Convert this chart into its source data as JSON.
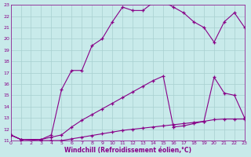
{
  "xlabel": "Windchill (Refroidissement éolien,°C)",
  "xlim": [
    0,
    23
  ],
  "ylim": [
    11,
    23
  ],
  "xticks": [
    0,
    1,
    2,
    3,
    4,
    5,
    6,
    7,
    8,
    9,
    10,
    11,
    12,
    13,
    14,
    15,
    16,
    17,
    18,
    19,
    20,
    21,
    22,
    23
  ],
  "yticks": [
    11,
    12,
    13,
    14,
    15,
    16,
    17,
    18,
    19,
    20,
    21,
    22,
    23
  ],
  "bg_color": "#c8eaea",
  "grid_color": "#a8d0d0",
  "line_color": "#880088",
  "curve1_x": [
    0,
    1,
    3,
    4,
    5,
    6,
    7,
    8,
    9,
    10,
    11,
    12,
    13,
    14,
    15,
    16,
    17,
    18,
    19,
    20,
    21,
    22,
    23
  ],
  "curve1_y": [
    11.5,
    11.1,
    11.1,
    11.5,
    15.5,
    17.2,
    17.2,
    19.4,
    20.0,
    21.5,
    22.8,
    22.5,
    22.5,
    23.2,
    23.3,
    22.8,
    22.3,
    21.5,
    21.0,
    19.7,
    21.5,
    22.3,
    21.0
  ],
  "curve2_x": [
    0,
    1,
    3,
    4,
    5,
    6,
    7,
    8,
    9,
    10,
    11,
    12,
    13,
    14,
    15,
    16,
    17,
    18,
    19,
    20,
    21,
    22,
    23
  ],
  "curve2_y": [
    11.5,
    11.1,
    11.1,
    11.3,
    11.5,
    12.2,
    12.8,
    13.3,
    13.8,
    14.3,
    14.8,
    15.3,
    15.8,
    16.3,
    16.7,
    12.2,
    12.3,
    12.5,
    12.7,
    16.6,
    15.2,
    15.0,
    13.0
  ],
  "curve3_x": [
    0,
    1,
    3,
    4,
    5,
    6,
    7,
    8,
    9,
    10,
    11,
    12,
    13,
    14,
    15,
    16,
    17,
    18,
    19,
    20,
    21,
    22,
    23
  ],
  "curve3_y": [
    11.5,
    11.1,
    11.0,
    11.0,
    11.0,
    11.15,
    11.3,
    11.45,
    11.6,
    11.75,
    11.9,
    12.0,
    12.1,
    12.2,
    12.3,
    12.4,
    12.5,
    12.6,
    12.7,
    12.85,
    12.9,
    12.9,
    12.9
  ]
}
